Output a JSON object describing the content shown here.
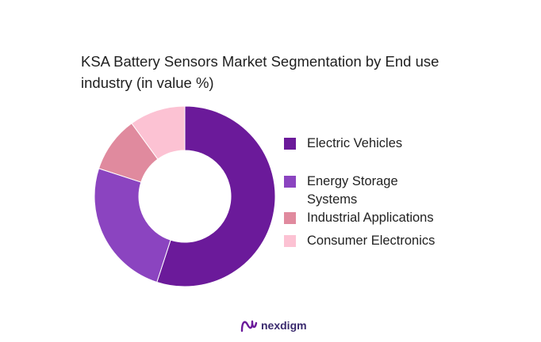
{
  "page": {
    "title": "KSA Battery Sensors Market Segmentation by End use industry (in value %)",
    "brand": "nexdigm",
    "brand_logo_icon": "nexdigm-logo-icon"
  },
  "chart_data": {
    "type": "pie",
    "style": "donut",
    "title": "KSA Battery Sensors Market Segmentation by End use industry (in value %)",
    "legend_position": "right",
    "categories": [
      "Electric Vehicles",
      "Energy Storage Systems",
      "Industrial Applications",
      "Consumer Electronics"
    ],
    "values": [
      55,
      25,
      10,
      10
    ],
    "colors": [
      "#6b1a9a",
      "#8b44c0",
      "#e08a9e",
      "#fcc2d3"
    ]
  }
}
